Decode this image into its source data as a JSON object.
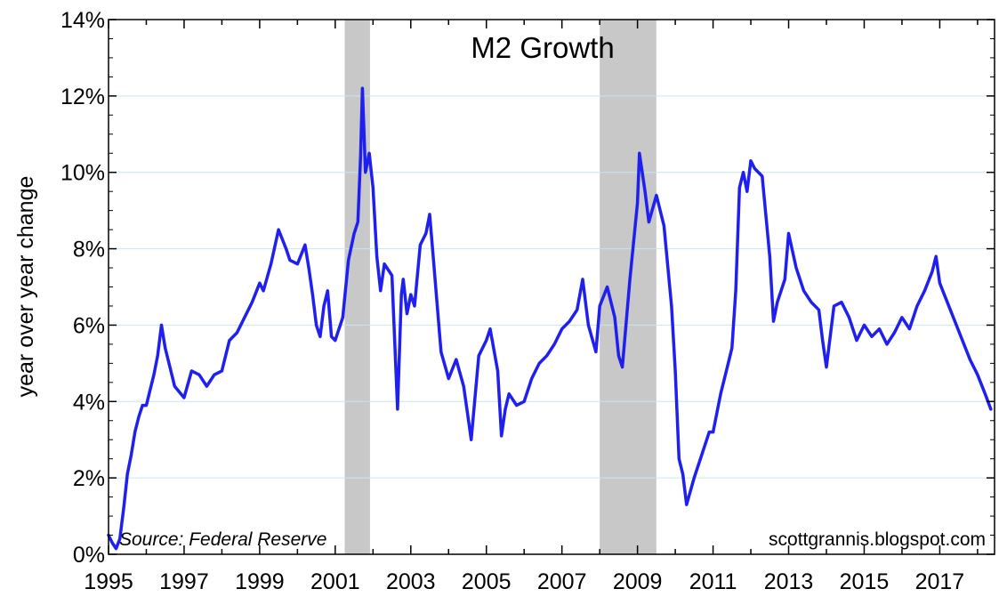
{
  "chart_data": {
    "type": "line",
    "title": "M2 Growth",
    "ylabel": "year over year change",
    "xlabel": "",
    "source_note": "Source: Federal Reserve",
    "credit": "scottgrannis.blogspot.com",
    "xlim": [
      1995,
      2018.45
    ],
    "ylim": [
      0,
      14
    ],
    "x_ticks": [
      1995,
      1997,
      1999,
      2001,
      2003,
      2005,
      2007,
      2009,
      2011,
      2013,
      2015,
      2017
    ],
    "x_tick_labels": [
      "1995",
      "1997",
      "1999",
      "2001",
      "2003",
      "2005",
      "2007",
      "2009",
      "2011",
      "2013",
      "2015",
      "2017"
    ],
    "y_ticks": [
      0,
      2,
      4,
      6,
      8,
      10,
      12,
      14
    ],
    "y_tick_labels": [
      "0%",
      "2%",
      "4%",
      "6%",
      "8%",
      "10%",
      "12%",
      "14%"
    ],
    "grid": true,
    "line_color": "#1f1ff0",
    "grid_color": "#c5e6f2",
    "recession_color": "#c8c8c8",
    "recessions": [
      [
        2001.25,
        2001.92
      ],
      [
        2008.0,
        2009.5
      ]
    ],
    "series": [
      {
        "x": [
          1995.0,
          1995.1,
          1995.2,
          1995.3,
          1995.4,
          1995.5,
          1995.6,
          1995.7,
          1995.8,
          1995.9,
          1996.0,
          1996.1,
          1996.2,
          1996.3,
          1996.4,
          1996.5,
          1996.6,
          1996.75,
          1997.0,
          1997.2,
          1997.4,
          1997.6,
          1997.8,
          1998.0,
          1998.2,
          1998.4,
          1998.6,
          1998.8,
          1999.0,
          1999.1,
          1999.3,
          1999.5,
          1999.7,
          1999.8,
          2000.0,
          2000.2,
          2000.3,
          2000.4,
          2000.5,
          2000.6,
          2000.7,
          2000.8,
          2000.9,
          2001.0,
          2001.2,
          2001.35,
          2001.5,
          2001.6,
          2001.67,
          2001.72,
          2001.8,
          2001.9,
          2002.0,
          2002.1,
          2002.2,
          2002.3,
          2002.5,
          2002.65,
          2002.75,
          2002.8,
          2002.9,
          2003.0,
          2003.1,
          2003.25,
          2003.4,
          2003.5,
          2003.6,
          2003.8,
          2004.0,
          2004.2,
          2004.4,
          2004.5,
          2004.6,
          2004.8,
          2005.0,
          2005.1,
          2005.3,
          2005.4,
          2005.5,
          2005.6,
          2005.8,
          2006.0,
          2006.2,
          2006.4,
          2006.6,
          2006.8,
          2007.0,
          2007.2,
          2007.4,
          2007.55,
          2007.7,
          2007.9,
          2008.0,
          2008.2,
          2008.4,
          2008.5,
          2008.6,
          2008.8,
          2009.0,
          2009.05,
          2009.2,
          2009.3,
          2009.5,
          2009.7,
          2009.9,
          2010.0,
          2010.1,
          2010.2,
          2010.3,
          2010.5,
          2010.7,
          2010.9,
          2011.0,
          2011.2,
          2011.4,
          2011.5,
          2011.6,
          2011.7,
          2011.8,
          2011.9,
          2012.0,
          2012.1,
          2012.3,
          2012.5,
          2012.6,
          2012.7,
          2012.9,
          2013.0,
          2013.2,
          2013.4,
          2013.6,
          2013.8,
          2013.9,
          2014.0,
          2014.2,
          2014.4,
          2014.6,
          2014.8,
          2015.0,
          2015.2,
          2015.4,
          2015.6,
          2015.8,
          2016.0,
          2016.2,
          2016.4,
          2016.6,
          2016.8,
          2016.9,
          2017.0,
          2017.2,
          2017.4,
          2017.6,
          2017.8,
          2018.0,
          2018.2,
          2018.35
        ],
        "y": [
          0.5,
          0.3,
          0.15,
          0.4,
          1.2,
          2.1,
          2.6,
          3.2,
          3.6,
          3.9,
          3.9,
          4.3,
          4.7,
          5.2,
          6.0,
          5.4,
          5.0,
          4.4,
          4.1,
          4.8,
          4.7,
          4.4,
          4.7,
          4.8,
          5.6,
          5.8,
          6.2,
          6.6,
          7.1,
          6.9,
          7.6,
          8.5,
          8.0,
          7.7,
          7.6,
          8.1,
          7.5,
          6.8,
          6.0,
          5.7,
          6.5,
          6.9,
          5.7,
          5.6,
          6.2,
          7.7,
          8.4,
          8.7,
          10.4,
          12.2,
          10.0,
          10.5,
          9.6,
          7.8,
          6.9,
          7.6,
          7.3,
          3.8,
          6.8,
          7.2,
          6.3,
          6.8,
          6.5,
          8.1,
          8.4,
          8.9,
          7.7,
          5.3,
          4.6,
          5.1,
          4.4,
          3.7,
          3.0,
          5.2,
          5.6,
          5.9,
          4.8,
          3.1,
          3.8,
          4.2,
          3.9,
          4.0,
          4.6,
          5.0,
          5.2,
          5.5,
          5.9,
          6.1,
          6.4,
          7.2,
          6.0,
          5.3,
          6.5,
          7.0,
          6.2,
          5.2,
          4.9,
          7.2,
          9.2,
          10.5,
          9.5,
          8.7,
          9.4,
          8.6,
          6.5,
          4.8,
          2.5,
          2.1,
          1.3,
          2.0,
          2.6,
          3.2,
          3.2,
          4.2,
          5.0,
          5.4,
          6.9,
          9.6,
          10.0,
          9.5,
          10.3,
          10.1,
          9.9,
          7.8,
          6.1,
          6.6,
          7.2,
          8.4,
          7.5,
          6.9,
          6.6,
          6.4,
          5.6,
          4.9,
          6.5,
          6.6,
          6.2,
          5.6,
          6.0,
          5.7,
          5.9,
          5.5,
          5.8,
          6.2,
          5.9,
          6.5,
          6.9,
          7.4,
          7.8,
          7.1,
          6.6,
          6.1,
          5.6,
          5.1,
          4.7,
          4.2,
          3.8
        ]
      }
    ]
  }
}
